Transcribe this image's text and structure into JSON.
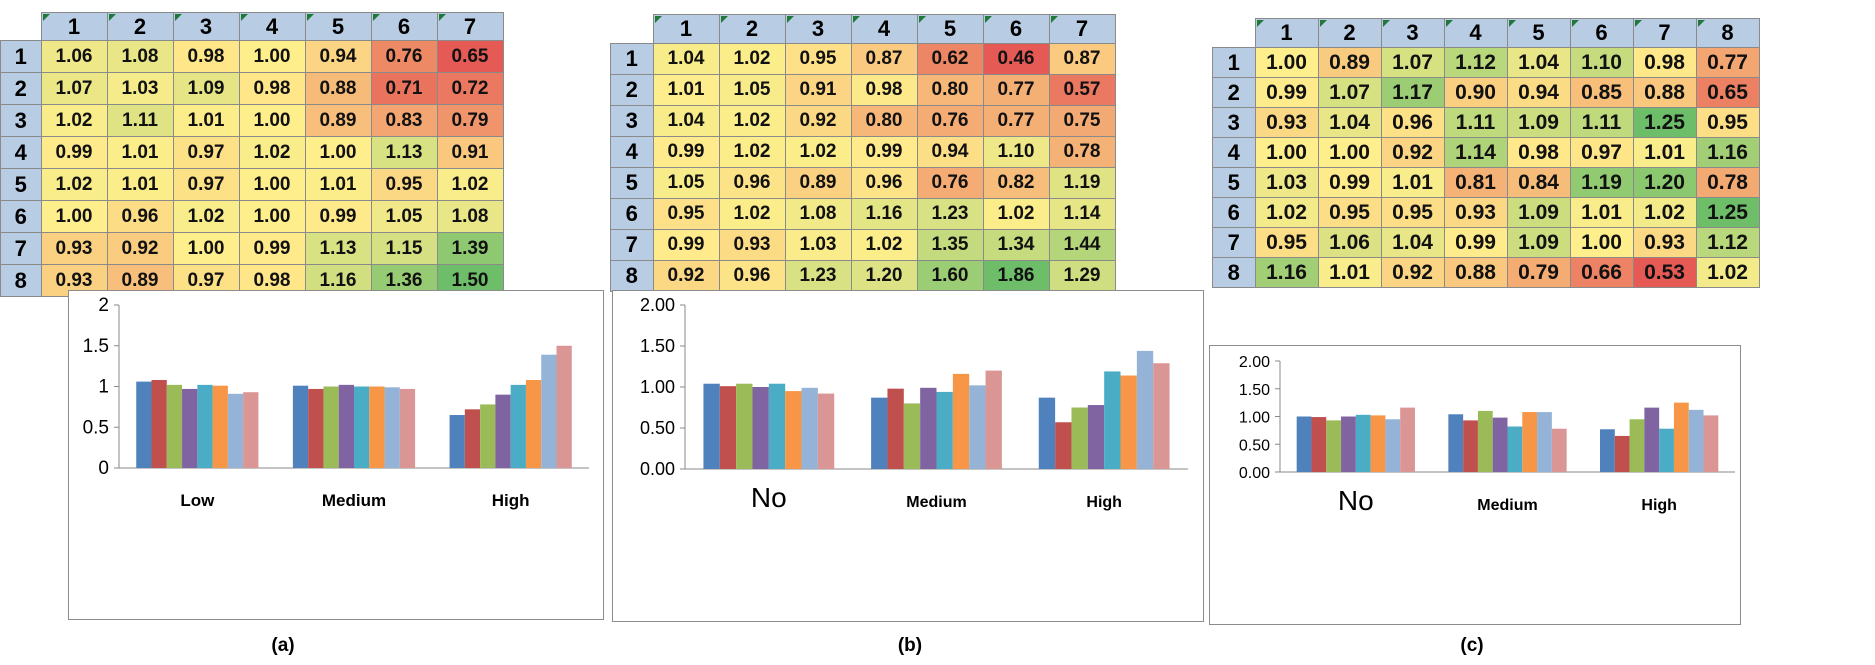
{
  "captions": [
    "(a)",
    "(b)",
    "(c)"
  ],
  "chart_data": [
    {
      "type": "table",
      "panel": "(a)",
      "columns": [
        "1",
        "2",
        "3",
        "4",
        "5",
        "6",
        "7"
      ],
      "rows": [
        "1",
        "2",
        "3",
        "4",
        "5",
        "6",
        "7",
        "8"
      ],
      "values": [
        [
          "1.06",
          "1.08",
          "0.98",
          "1.00",
          "0.94",
          "0.76",
          "0.65"
        ],
        [
          "1.07",
          "1.03",
          "1.09",
          "0.98",
          "0.88",
          "0.71",
          "0.72"
        ],
        [
          "1.02",
          "1.11",
          "1.01",
          "1.00",
          "0.89",
          "0.83",
          "0.79"
        ],
        [
          "0.99",
          "1.01",
          "0.97",
          "1.02",
          "1.00",
          "1.13",
          "0.91"
        ],
        [
          "1.02",
          "1.01",
          "0.97",
          "1.00",
          "1.01",
          "0.95",
          "1.02"
        ],
        [
          "1.00",
          "0.96",
          "1.02",
          "1.00",
          "0.99",
          "1.05",
          "1.08"
        ],
        [
          "0.93",
          "0.92",
          "1.00",
          "0.99",
          "1.13",
          "1.15",
          "1.39"
        ],
        [
          "0.93",
          "0.89",
          "0.97",
          "0.98",
          "1.16",
          "1.36",
          "1.50"
        ]
      ]
    },
    {
      "type": "table",
      "panel": "(b)",
      "columns": [
        "1",
        "2",
        "3",
        "4",
        "5",
        "6",
        "7"
      ],
      "rows": [
        "1",
        "2",
        "3",
        "4",
        "5",
        "6",
        "7",
        "8"
      ],
      "values": [
        [
          "1.04",
          "1.02",
          "0.95",
          "0.87",
          "0.62",
          "0.46",
          "0.87"
        ],
        [
          "1.01",
          "1.05",
          "0.91",
          "0.98",
          "0.80",
          "0.77",
          "0.57"
        ],
        [
          "1.04",
          "1.02",
          "0.92",
          "0.80",
          "0.76",
          "0.77",
          "0.75"
        ],
        [
          "0.99",
          "1.02",
          "1.02",
          "0.99",
          "0.94",
          "1.10",
          "0.78"
        ],
        [
          "1.05",
          "0.96",
          "0.89",
          "0.96",
          "0.76",
          "0.82",
          "1.19"
        ],
        [
          "0.95",
          "1.02",
          "1.08",
          "1.16",
          "1.23",
          "1.02",
          "1.14"
        ],
        [
          "0.99",
          "0.93",
          "1.03",
          "1.02",
          "1.35",
          "1.34",
          "1.44"
        ],
        [
          "0.92",
          "0.96",
          "1.23",
          "1.20",
          "1.60",
          "1.86",
          "1.29"
        ]
      ]
    },
    {
      "type": "table",
      "panel": "(c)",
      "columns": [
        "1",
        "2",
        "3",
        "4",
        "5",
        "6",
        "7",
        "8"
      ],
      "rows": [
        "1",
        "2",
        "3",
        "4",
        "5",
        "6",
        "7",
        "8"
      ],
      "values": [
        [
          "1.00",
          "0.89",
          "1.07",
          "1.12",
          "1.04",
          "1.10",
          "0.98",
          "0.77"
        ],
        [
          "0.99",
          "1.07",
          "1.17",
          "0.90",
          "0.94",
          "0.85",
          "0.88",
          "0.65"
        ],
        [
          "0.93",
          "1.04",
          "0.96",
          "1.11",
          "1.09",
          "1.11",
          "1.25",
          "0.95"
        ],
        [
          "1.00",
          "1.00",
          "0.92",
          "1.14",
          "0.98",
          "0.97",
          "1.01",
          "1.16"
        ],
        [
          "1.03",
          "0.99",
          "1.01",
          "0.81",
          "0.84",
          "1.19",
          "1.20",
          "0.78"
        ],
        [
          "1.02",
          "0.95",
          "0.95",
          "0.93",
          "1.09",
          "1.01",
          "1.02",
          "1.25"
        ],
        [
          "0.95",
          "1.06",
          "1.04",
          "0.99",
          "1.09",
          "1.00",
          "0.93",
          "1.12"
        ],
        [
          "1.16",
          "1.01",
          "0.92",
          "0.88",
          "0.79",
          "0.66",
          "0.53",
          "1.02"
        ]
      ]
    },
    {
      "type": "bar",
      "panel": "(a)",
      "categories": [
        "Low",
        "Medium",
        "High"
      ],
      "ylim": [
        0,
        2
      ],
      "yticks": [
        "0",
        "0.5",
        "1",
        "1.5",
        "2"
      ],
      "grid": false,
      "legend": "none",
      "colors": [
        "#4f81bd",
        "#c0504d",
        "#9bbb59",
        "#8064a2",
        "#4bacc6",
        "#f79646",
        "#95b3d7",
        "#d99694"
      ],
      "series": [
        {
          "values": [
            1.06,
            1.01,
            0.65
          ]
        },
        {
          "values": [
            1.08,
            0.97,
            0.72
          ]
        },
        {
          "values": [
            1.02,
            1.0,
            0.78
          ]
        },
        {
          "values": [
            0.97,
            1.02,
            0.9
          ]
        },
        {
          "values": [
            1.02,
            1.0,
            1.02
          ]
        },
        {
          "values": [
            1.01,
            1.0,
            1.08
          ]
        },
        {
          "values": [
            0.91,
            0.99,
            1.39
          ]
        },
        {
          "values": [
            0.93,
            0.97,
            1.5
          ]
        }
      ]
    },
    {
      "type": "bar",
      "panel": "(b)",
      "categories": [
        "No",
        "Medium",
        "High"
      ],
      "ylim": [
        0,
        2
      ],
      "yticks": [
        "0.00",
        "0.50",
        "1.00",
        "1.50",
        "2.00"
      ],
      "grid": false,
      "legend": "none",
      "colors": [
        "#4f81bd",
        "#c0504d",
        "#9bbb59",
        "#8064a2",
        "#4bacc6",
        "#f79646",
        "#95b3d7",
        "#d99694"
      ],
      "series": [
        {
          "values": [
            1.04,
            0.87,
            0.87
          ]
        },
        {
          "values": [
            1.01,
            0.98,
            0.57
          ]
        },
        {
          "values": [
            1.04,
            0.8,
            0.75
          ]
        },
        {
          "values": [
            1.0,
            0.99,
            0.78
          ]
        },
        {
          "values": [
            1.04,
            0.94,
            1.19
          ]
        },
        {
          "values": [
            0.95,
            1.16,
            1.14
          ]
        },
        {
          "values": [
            0.99,
            1.02,
            1.44
          ]
        },
        {
          "values": [
            0.92,
            1.2,
            1.29
          ]
        }
      ]
    },
    {
      "type": "bar",
      "panel": "(c)",
      "categories": [
        "No",
        "Medium",
        "High"
      ],
      "ylim": [
        0,
        2
      ],
      "yticks": [
        "0.00",
        "0.50",
        "1.00",
        "1.50",
        "2.00"
      ],
      "grid": false,
      "legend": "none",
      "colors": [
        "#4f81bd",
        "#c0504d",
        "#9bbb59",
        "#8064a2",
        "#4bacc6",
        "#f79646",
        "#95b3d7",
        "#d99694"
      ],
      "series": [
        {
          "values": [
            1.0,
            1.04,
            0.77
          ]
        },
        {
          "values": [
            0.99,
            0.93,
            0.65
          ]
        },
        {
          "values": [
            0.93,
            1.1,
            0.95
          ]
        },
        {
          "values": [
            1.0,
            0.98,
            1.16
          ]
        },
        {
          "values": [
            1.03,
            0.82,
            0.78
          ]
        },
        {
          "values": [
            1.02,
            1.08,
            1.25
          ]
        },
        {
          "values": [
            0.95,
            1.08,
            1.12
          ]
        },
        {
          "values": [
            1.16,
            0.78,
            1.02
          ]
        }
      ]
    }
  ]
}
